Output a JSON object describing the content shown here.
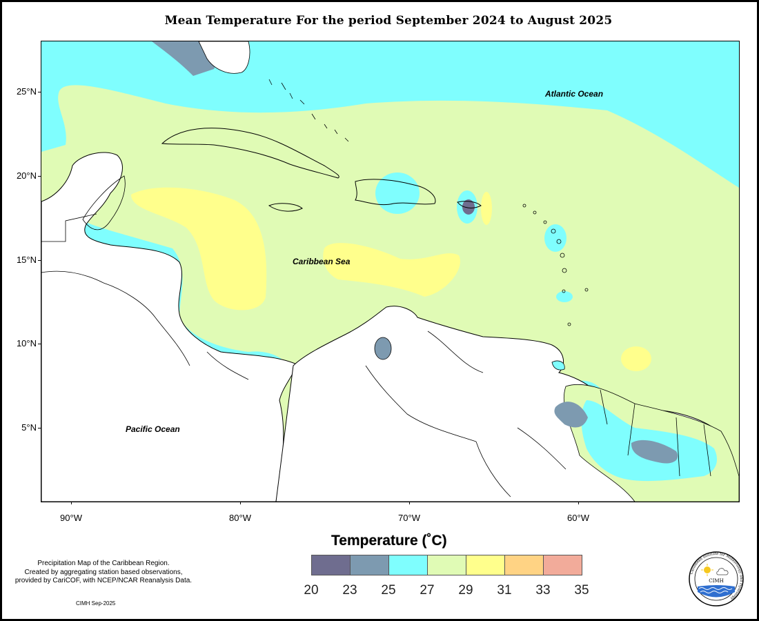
{
  "title": "Mean Temperature For the period September 2024 to August 2025",
  "map": {
    "labels": {
      "atlantic": "Atlantic Ocean",
      "caribbean": "Caribbean Sea",
      "pacific": "Pacific Ocean"
    },
    "lat_ticks": [
      "25°N",
      "20°N",
      "15°N",
      "10°N",
      "5°N"
    ],
    "lon_ticks": [
      "90°W",
      "80°W",
      "70°W",
      "60°W"
    ],
    "colors": {
      "background_band": "#e0fbb5",
      "band_20_23": "#6f6d8f",
      "band_23_25": "#7d9ab0",
      "band_25_27": "#7ffefe",
      "band_27_29": "#e0fbb5",
      "band_29_31": "#ffff8c",
      "land": "#ffffff"
    }
  },
  "legend": {
    "title": "Temperature (˚C)",
    "colors": [
      "#6f6d8f",
      "#7d9ab0",
      "#7ffefe",
      "#e0fbb5",
      "#ffff8c",
      "#ffd384",
      "#f2ab9a"
    ],
    "ticks": [
      "20",
      "23",
      "25",
      "27",
      "29",
      "31",
      "33",
      "35"
    ]
  },
  "note": {
    "line1": "Precipitation Map of the Caribbean Region.",
    "line2": "Created by aggregating station based observations,",
    "line3": "provided by CariCOF, with NCEP/NCAR Reanalysis Data."
  },
  "credit": "CIMH Sep-2025",
  "logo": {
    "ring_text": "Caribbean Institute for Meteorology and Hydrology",
    "center_text": "CIMH"
  }
}
